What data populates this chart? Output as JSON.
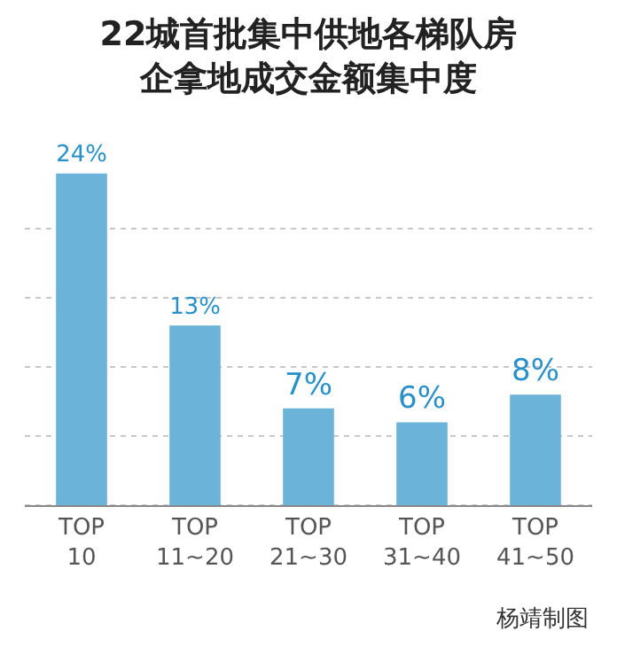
{
  "chart_data": {
    "type": "bar",
    "title": "22城首批集中供地各梯队房企拿地成交金额集中度",
    "categories": [
      "TOP\n10",
      "TOP\n11~20",
      "TOP\n21~30",
      "TOP\n31~40",
      "TOP\n41~50"
    ],
    "values": [
      24,
      13,
      7,
      6,
      8
    ],
    "value_labels": [
      "24%",
      "13%",
      "7%",
      "6%",
      "8%"
    ],
    "color": "#6cb3da",
    "yticks": [
      {
        "value": 0,
        "label": null
      },
      {
        "value": 5,
        "label": null
      },
      {
        "value": 10,
        "label": null
      },
      {
        "value": 15,
        "label": null
      },
      {
        "value": 20,
        "label": null
      }
    ],
    "grid": "y",
    "tick_labels": "x",
    "annotations": [
      "杨靖制图"
    ]
  }
}
